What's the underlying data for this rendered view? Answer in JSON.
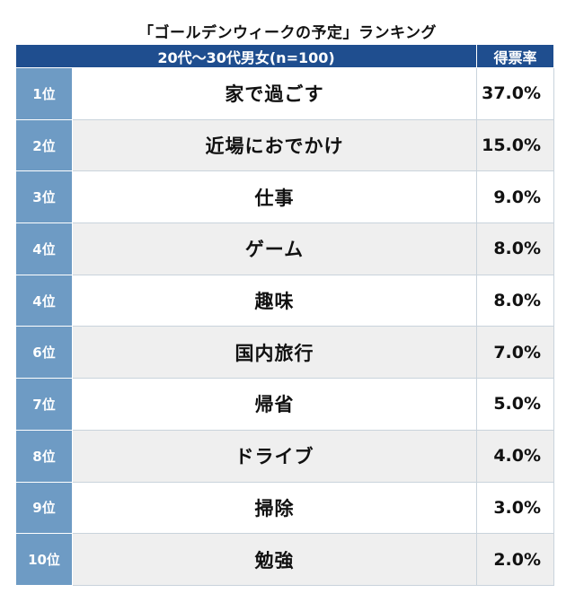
{
  "chart_data": {
    "type": "table",
    "title": "「ゴールデンウィークの予定」ランキング",
    "header": {
      "group": "20代〜30代男女(n=100)",
      "rate": "得票率"
    },
    "rows": [
      {
        "rank": "1位",
        "item": "家で過ごす",
        "rate": "37.0%",
        "value": 37.0
      },
      {
        "rank": "2位",
        "item": "近場におでかけ",
        "rate": "15.0%",
        "value": 15.0
      },
      {
        "rank": "3位",
        "item": "仕事",
        "rate": "9.0%",
        "value": 9.0
      },
      {
        "rank": "4位",
        "item": "ゲーム",
        "rate": "8.0%",
        "value": 8.0
      },
      {
        "rank": "4位",
        "item": "趣味",
        "rate": "8.0%",
        "value": 8.0
      },
      {
        "rank": "6位",
        "item": "国内旅行",
        "rate": "7.0%",
        "value": 7.0
      },
      {
        "rank": "7位",
        "item": "帰省",
        "rate": "5.0%",
        "value": 5.0
      },
      {
        "rank": "8位",
        "item": "ドライブ",
        "rate": "4.0%",
        "value": 4.0
      },
      {
        "rank": "9位",
        "item": "掃除",
        "rate": "3.0%",
        "value": 3.0
      },
      {
        "rank": "10位",
        "item": "勉強",
        "rate": "2.0%",
        "value": 2.0
      }
    ]
  }
}
